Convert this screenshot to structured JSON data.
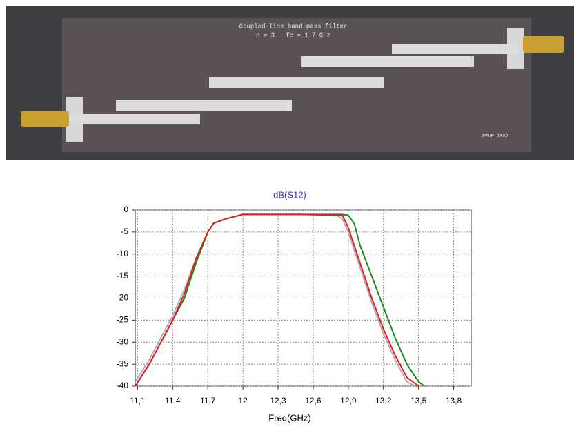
{
  "photo": {
    "title": "Coupled-line band-pass filter",
    "subtitle": "n = 3   fc = 1.7 GHz",
    "mark": "FEUP 2002"
  },
  "chart_data": {
    "type": "line",
    "title": "dB(S12)",
    "x_label": "Freq(GHz)",
    "xlim": [
      11.08,
      13.95
    ],
    "ylim": [
      -40,
      0
    ],
    "xticks": [
      {
        "value": 11.1,
        "label": "11,1"
      },
      {
        "value": 11.4,
        "label": "11,4"
      },
      {
        "value": 11.7,
        "label": "11,7"
      },
      12,
      {
        "value": 12.3,
        "label": "12,3"
      },
      {
        "value": 12.6,
        "label": "12,6"
      },
      {
        "value": 12.9,
        "label": "12,9"
      },
      {
        "value": 13.2,
        "label": "13,2"
      },
      {
        "value": 13.5,
        "label": "13,5"
      },
      {
        "value": 13.8,
        "label": "13,8"
      }
    ],
    "yticks": [
      0,
      -5,
      -10,
      -15,
      -20,
      -25,
      -30,
      -35,
      -40
    ],
    "grid": true,
    "series": [
      {
        "color": "#b8a8b8",
        "x": [
          11.08,
          11.2,
          11.3,
          11.4,
          11.5,
          11.6,
          11.7,
          11.75,
          11.85,
          12.0,
          12.5,
          12.8,
          12.85,
          12.9,
          13.0,
          13.1,
          13.2,
          13.3,
          13.4,
          13.47
        ],
        "values": [
          -39,
          -34,
          -29,
          -24,
          -18,
          -11,
          -5,
          -3,
          -2,
          -1,
          -1,
          -1.2,
          -2,
          -5,
          -13,
          -21,
          -28,
          -34,
          -39,
          -40
        ]
      },
      {
        "color": "#1a8a1a",
        "x": [
          11.08,
          11.2,
          11.3,
          11.4,
          11.5,
          11.6,
          11.7,
          11.75,
          11.85,
          12.0,
          12.5,
          12.85,
          12.9,
          12.95,
          13.0,
          13.1,
          13.2,
          13.3,
          13.4,
          13.5,
          13.55
        ],
        "values": [
          -40,
          -35,
          -30,
          -25,
          -20,
          -12,
          -5,
          -3,
          -2,
          -1,
          -1,
          -1,
          -1.2,
          -3,
          -8,
          -15,
          -22,
          -29,
          -35,
          -39,
          -40
        ]
      },
      {
        "color": "#e02020",
        "x": [
          11.08,
          11.2,
          11.3,
          11.4,
          11.5,
          11.6,
          11.7,
          11.75,
          11.85,
          12.0,
          12.5,
          12.85,
          12.9,
          13.0,
          13.1,
          13.2,
          13.3,
          13.4,
          13.5
        ],
        "values": [
          -40,
          -35,
          -30,
          -25,
          -19,
          -11,
          -5,
          -3,
          -2,
          -1,
          -1,
          -1.2,
          -4,
          -12,
          -20,
          -27,
          -33,
          -38,
          -40
        ]
      }
    ]
  }
}
